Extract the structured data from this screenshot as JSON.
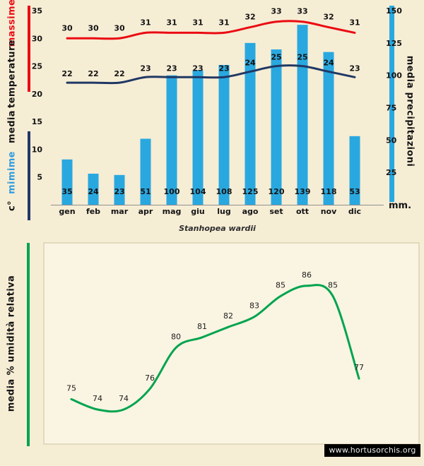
{
  "credit": "www.hortusorchis.org",
  "colors": {
    "background": "#f6edd5",
    "panel": "#faf4e2",
    "red": "#ea0b12",
    "navy": "#203864",
    "cyan": "#29a8e0",
    "green": "#00a44f",
    "lightblue": "#2e9be0",
    "text": "#141414"
  },
  "chart_data": [
    {
      "type": "bar+line",
      "title": "Stanhopea wardii",
      "categories": [
        "gen",
        "feb",
        "mar",
        "apr",
        "mag",
        "giu",
        "lug",
        "ago",
        "set",
        "ott",
        "nov",
        "dic"
      ],
      "series": [
        {
          "name": "massime",
          "type": "line",
          "axis": "left",
          "color": "#ea0b12",
          "values": [
            30,
            30,
            30,
            31,
            31,
            31,
            31,
            32,
            33,
            33,
            32,
            31
          ]
        },
        {
          "name": "mimime",
          "type": "line",
          "axis": "left",
          "color": "#203864",
          "values": [
            22,
            22,
            22,
            23,
            23,
            23,
            23,
            24,
            25,
            25,
            24,
            23
          ]
        },
        {
          "name": "media precipitazioni",
          "type": "bar",
          "axis": "right",
          "color": "#29a8e0",
          "values": [
            35,
            24,
            23,
            51,
            100,
            104,
            108,
            125,
            120,
            139,
            118,
            53
          ]
        }
      ],
      "left_axis": {
        "range": [
          0,
          35
        ],
        "ticks": [
          35,
          30,
          25,
          20,
          15,
          10,
          5
        ],
        "unit": "c°",
        "words": {
          "massime": "massime",
          "temperature": "temperature",
          "media": "media",
          "mimime": "mimime"
        }
      },
      "right_axis": {
        "range": [
          0,
          150
        ],
        "ticks": [
          150,
          125,
          100,
          75,
          50,
          25
        ],
        "label": "media precipitazioni",
        "unit": "mm."
      },
      "grid": false
    },
    {
      "type": "line",
      "ylabel": "media % umidità relativa",
      "color": "#00a44f",
      "values": [
        75,
        74,
        74,
        76,
        80,
        81,
        82,
        83,
        85,
        86,
        85,
        77
      ]
    }
  ]
}
